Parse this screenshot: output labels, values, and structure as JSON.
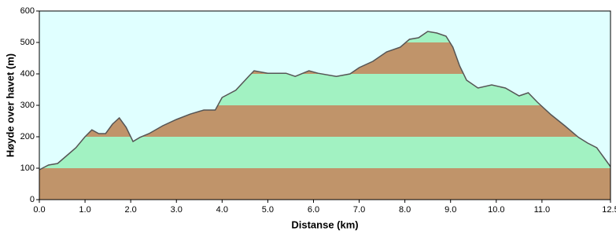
{
  "chart_data": {
    "type": "area",
    "x_label": "Distanse   (km)",
    "y_label": "Høyde over havet (m)",
    "x": [
      0.0,
      0.2,
      0.4,
      0.6,
      0.8,
      1.0,
      1.15,
      1.3,
      1.45,
      1.6,
      1.75,
      1.9,
      2.05,
      2.2,
      2.4,
      2.7,
      3.0,
      3.3,
      3.6,
      3.85,
      4.0,
      4.3,
      4.6,
      4.7,
      5.0,
      5.4,
      5.6,
      5.9,
      6.1,
      6.5,
      6.8,
      7.0,
      7.3,
      7.6,
      7.9,
      8.1,
      8.3,
      8.5,
      8.7,
      8.9,
      9.05,
      9.2,
      9.35,
      9.6,
      9.9,
      10.2,
      10.5,
      10.7,
      10.9,
      11.2,
      11.5,
      11.8,
      12.0,
      12.2,
      12.35,
      12.5
    ],
    "values": [
      95,
      110,
      115,
      140,
      165,
      200,
      222,
      210,
      210,
      240,
      260,
      230,
      185,
      198,
      210,
      235,
      255,
      272,
      285,
      285,
      325,
      348,
      395,
      410,
      402,
      402,
      392,
      410,
      402,
      392,
      400,
      420,
      440,
      470,
      485,
      510,
      515,
      535,
      530,
      520,
      485,
      425,
      380,
      355,
      365,
      355,
      330,
      340,
      310,
      270,
      235,
      198,
      180,
      165,
      135,
      105
    ],
    "line_color": "#555555",
    "band_colors": [
      "#c0946a",
      "#a2f2c2"
    ],
    "background": "#e0ffff",
    "xlim": [
      0,
      12.5
    ],
    "ylim": [
      0,
      600
    ],
    "xticks": [
      {
        "value": 0,
        "label": "0.0"
      },
      {
        "value": 1,
        "label": "1.0"
      },
      {
        "value": 2,
        "label": "2.0"
      },
      {
        "value": 3,
        "label": "3.0"
      },
      {
        "value": 4,
        "label": "4.0"
      },
      {
        "value": 5,
        "label": "5.0"
      },
      {
        "value": 6,
        "label": "6.0"
      },
      {
        "value": 7,
        "label": "7.0"
      },
      {
        "value": 8,
        "label": "8.0"
      },
      {
        "value": 9,
        "label": "9.0"
      },
      {
        "value": 10,
        "label": "10.0"
      },
      {
        "value": 11,
        "label": "11.0"
      },
      {
        "value": 12.5,
        "label": "12.5"
      }
    ],
    "yticks": [
      0,
      100,
      200,
      300,
      400,
      500,
      600
    ]
  }
}
